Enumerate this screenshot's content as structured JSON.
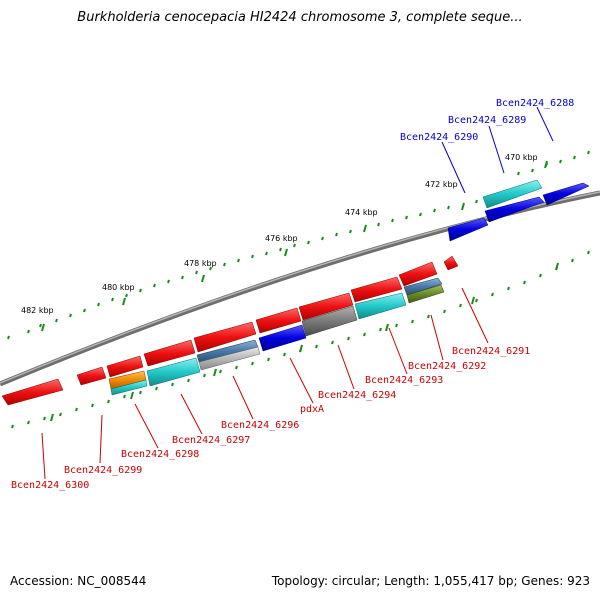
{
  "title": "Burkholderia cenocepacia HI2424 chromosome 3, complete seque...",
  "footer": {
    "accession": "Accession: NC_008544",
    "summary": "Topology: circular; Length: 1,055,417 bp; Genes: 923"
  },
  "scale_labels": [
    "470 kbp",
    "472 kbp",
    "474 kbp",
    "476 kbp",
    "478 kbp",
    "480 kbp",
    "482 kbp"
  ],
  "genes_forward": [
    "Bcen2424_6288",
    "Bcen2424_6289",
    "Bcen2424_6290"
  ],
  "genes_reverse": [
    "Bcen2424_6291",
    "Bcen2424_6292",
    "Bcen2424_6293",
    "Bcen2424_6294",
    "pdxA",
    "Bcen2424_6296",
    "Bcen2424_6297",
    "Bcen2424_6298",
    "Bcen2424_6299",
    "Bcen2424_6300"
  ],
  "colors": {
    "backbone": "#808080",
    "tick": "#1a8a1a",
    "forward_label": "#0000cc",
    "reverse_label": "#cc0000",
    "red": "#ee1111",
    "blue": "#0000dd",
    "cyan": "#22c8c8",
    "steel": "#4a7aaa",
    "gray": "#808080",
    "orange": "#f08a00",
    "olive": "#6a8a2a",
    "silver": "#b0b0b0"
  }
}
